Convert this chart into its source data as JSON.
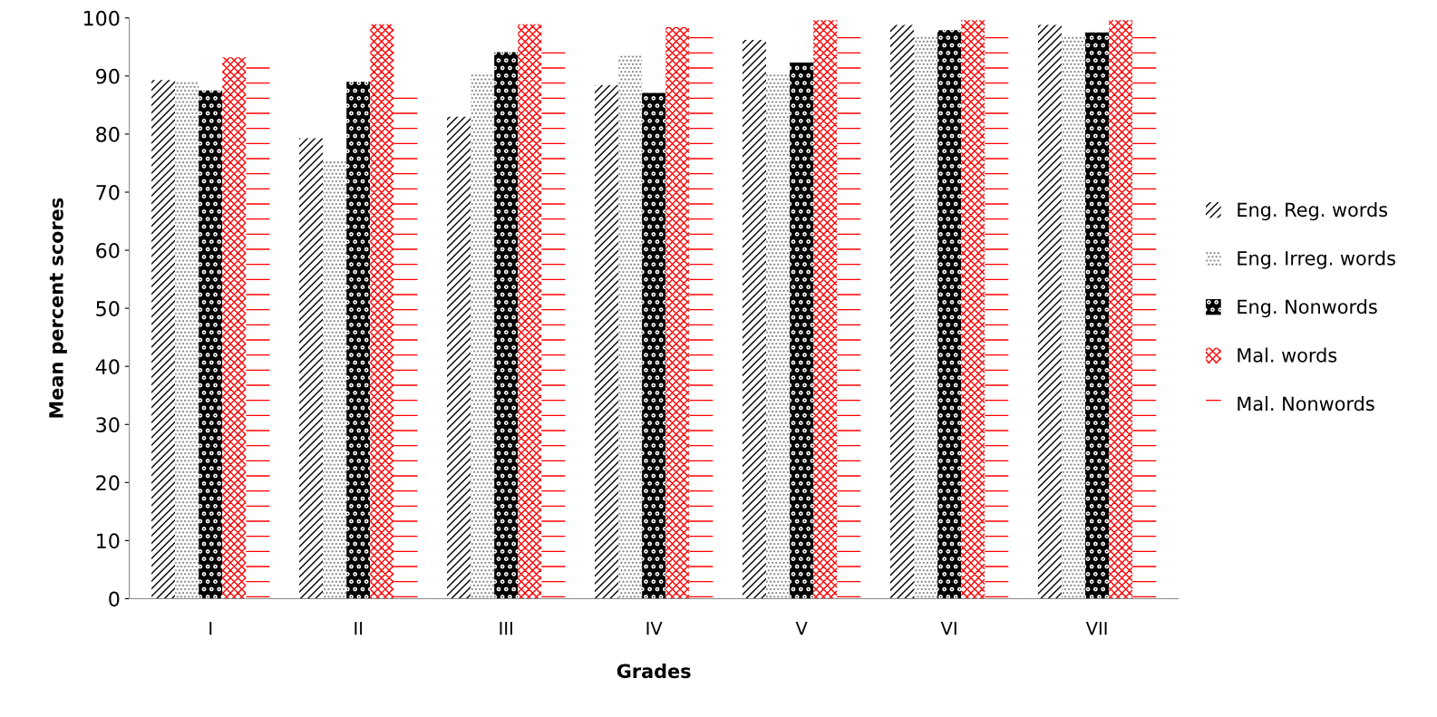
{
  "chart_data": {
    "type": "bar",
    "xlabel": "Grades",
    "ylabel": "Mean percent scores",
    "categories": [
      "I",
      "II",
      "III",
      "IV",
      "V",
      "VI",
      "VII"
    ],
    "series": [
      {
        "name": "Eng. Reg. words",
        "color": "#000000",
        "values": [
          89.3,
          79.3,
          83,
          88.4,
          96.2,
          98.8,
          98.8
        ]
      },
      {
        "name": "Eng. Irreg. words",
        "color": "#808080",
        "values": [
          89,
          75.4,
          90.6,
          93.7,
          90.6,
          96.8,
          96.8
        ]
      },
      {
        "name": "Eng. Nonwords",
        "color": "#000000",
        "values": [
          87.5,
          89,
          94.1,
          87.1,
          92.3,
          97.9,
          97.5
        ]
      },
      {
        "name": "Mal. words",
        "color": "#ff0000",
        "values": [
          93.2,
          98.9,
          98.9,
          98.4,
          99.6,
          99.6,
          99.6
        ]
      },
      {
        "name": "Mal. Nonwords",
        "color": "#ff0000",
        "values": [
          93,
          88,
          95,
          98.4,
          96.7,
          98.4,
          98.4
        ]
      }
    ],
    "ylim": [
      0,
      100
    ],
    "yticks": [
      0,
      10,
      20,
      30,
      40,
      50,
      60,
      70,
      80,
      90,
      100
    ],
    "grid": false,
    "legend": "right"
  }
}
